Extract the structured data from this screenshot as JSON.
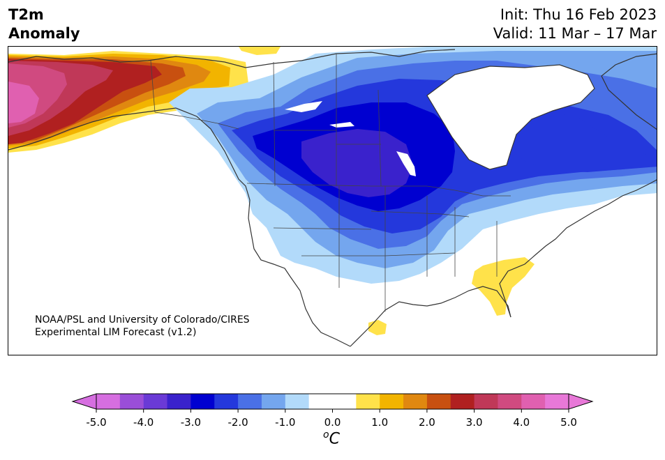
{
  "header": {
    "title_line1": "T2m",
    "title_line2": "Anomaly",
    "init": "Init: Thu 16 Feb 2023",
    "valid": "Valid: 11 Mar – 17 Mar"
  },
  "credit": {
    "line1": "NOAA/PSL and University of Colorado/CIRES",
    "line2": "Experimental LIM Forecast (v1.2)"
  },
  "colorbar": {
    "unit_base": "C",
    "unit_sup": "o",
    "tick_labels": [
      "-5.0",
      "-4.0",
      "-3.0",
      "-2.0",
      "-1.0",
      "0.0",
      "1.0",
      "2.0",
      "3.0",
      "4.0",
      "5.0"
    ],
    "colors": [
      "#d66ee0",
      "#9a4ed8",
      "#6a3ad6",
      "#3a22cc",
      "#0000d0",
      "#2438dc",
      "#4a70e6",
      "#74a6ee",
      "#b2dafa",
      "#ffffff",
      "#ffffff",
      "#ffe24a",
      "#f2b400",
      "#e08810",
      "#c85010",
      "#b02020",
      "#c03858",
      "#d04a80",
      "#e060b0",
      "#e878d8"
    ],
    "under_color": "#d66ee0",
    "over_color": "#e878d8"
  },
  "map_palette": {
    "cold1": "#b2dafa",
    "cold2": "#74a6ee",
    "cold3": "#4a70e6",
    "cold4": "#2438dc",
    "cold5": "#0000d0",
    "cold6": "#3a22cc",
    "warm1": "#ffe24a",
    "warm2": "#f2b400",
    "warm3": "#e08810",
    "warm4": "#c85010",
    "warm5": "#b02020",
    "warm6": "#c03858",
    "warm7": "#d04a80",
    "warm8": "#e060b0",
    "land_line": "#333333"
  }
}
